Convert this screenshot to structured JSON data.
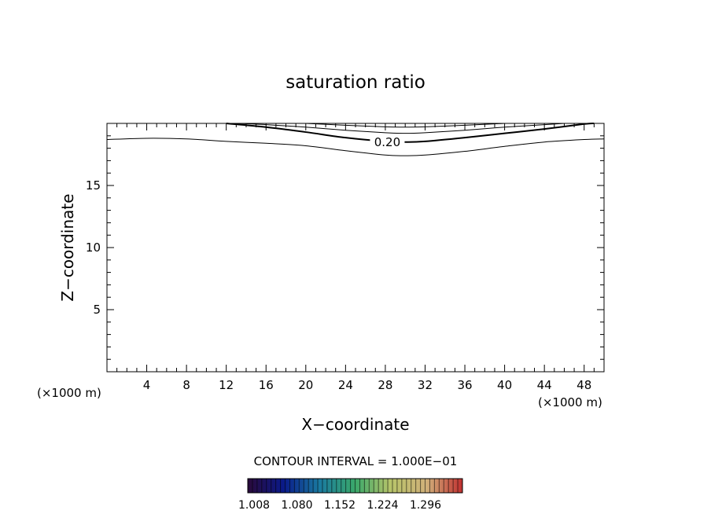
{
  "chart_data": {
    "type": "contour",
    "title": "saturation ratio",
    "xlabel": "X−coordinate",
    "ylabel": "Z−coordinate",
    "x_unit_left": "(×1000 m)",
    "x_unit_right": "(×1000 m)",
    "xlim": [
      0,
      50
    ],
    "ylim": [
      0,
      20
    ],
    "x_ticks": [
      4,
      8,
      12,
      16,
      20,
      24,
      28,
      32,
      36,
      40,
      44,
      48
    ],
    "y_ticks": [
      5,
      10,
      15
    ],
    "contour_interval_text": "CONTOUR INTERVAL = 1.000E−01",
    "contours": [
      {
        "level": "",
        "bold": false,
        "points": [
          [
            0,
            18.7
          ],
          [
            4,
            18.8
          ],
          [
            8,
            18.75
          ],
          [
            12,
            18.55
          ],
          [
            16,
            18.4
          ],
          [
            20,
            18.2
          ],
          [
            24,
            17.8
          ],
          [
            28,
            17.45
          ],
          [
            30,
            17.4
          ],
          [
            32,
            17.45
          ],
          [
            36,
            17.75
          ],
          [
            40,
            18.15
          ],
          [
            44,
            18.5
          ],
          [
            48,
            18.7
          ],
          [
            50,
            18.75
          ]
        ]
      },
      {
        "level": "0.20",
        "bold": true,
        "label_x": 28.2,
        "points": [
          [
            12,
            20
          ],
          [
            16,
            19.7
          ],
          [
            20,
            19.3
          ],
          [
            24,
            18.85
          ],
          [
            28,
            18.55
          ],
          [
            30,
            18.5
          ],
          [
            32,
            18.55
          ],
          [
            36,
            18.85
          ],
          [
            40,
            19.2
          ],
          [
            44,
            19.55
          ],
          [
            48,
            19.95
          ],
          [
            49,
            20
          ]
        ]
      },
      {
        "level": "",
        "bold": false,
        "points": [
          [
            13,
            20
          ],
          [
            16,
            19.9
          ],
          [
            20,
            19.7
          ],
          [
            24,
            19.45
          ],
          [
            28,
            19.25
          ],
          [
            30,
            19.2
          ],
          [
            32,
            19.25
          ],
          [
            36,
            19.45
          ],
          [
            40,
            19.7
          ],
          [
            44,
            19.9
          ],
          [
            46,
            20
          ]
        ]
      },
      {
        "level": "",
        "bold": false,
        "points": [
          [
            20,
            20
          ],
          [
            24,
            19.85
          ],
          [
            28,
            19.72
          ],
          [
            30,
            19.7
          ],
          [
            32,
            19.72
          ],
          [
            36,
            19.85
          ],
          [
            40,
            20
          ]
        ]
      }
    ],
    "colorbar": {
      "tick_labels": [
        "1.008",
        "1.080",
        "1.152",
        "1.224",
        "1.296"
      ],
      "stops": [
        "#2a0a3a",
        "#0a1a8a",
        "#1a7aa0",
        "#3aa86a",
        "#b8c46a",
        "#d0b07a",
        "#c03030"
      ]
    },
    "grid": false
  }
}
